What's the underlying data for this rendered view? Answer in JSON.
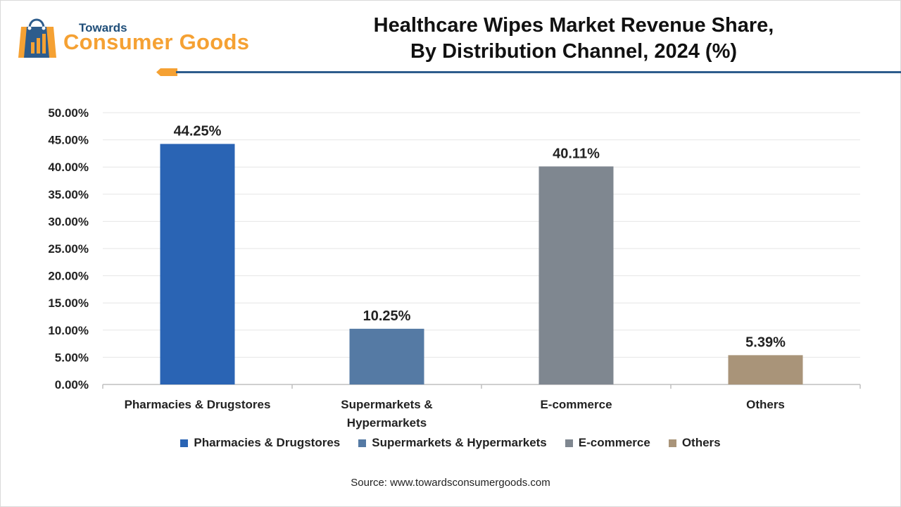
{
  "brand": {
    "top": "Towards",
    "main": "Consumer Goods"
  },
  "title_line1": "Healthcare Wipes Market Revenue Share,",
  "title_line2": "By Distribution Channel, 2024 (%)",
  "source": "Source: www.towardsconsumergoods.com",
  "colors": {
    "pharmacies": "#2a64b4",
    "supermarkets": "#557aa4",
    "ecommerce": "#7f8790",
    "others": "#a99479",
    "brand_orange": "#f5a133",
    "brand_blue": "#2d5c8c"
  },
  "chart_data": {
    "type": "bar",
    "title": "Healthcare Wipes Market Revenue Share, By Distribution Channel, 2024 (%)",
    "categories": [
      "Pharmacies & Drugstores",
      "Supermarkets & Hypermarkets",
      "E-commerce",
      "Others"
    ],
    "category_lines": [
      [
        "Pharmacies & Drugstores"
      ],
      [
        "Supermarkets &",
        "Hypermarkets"
      ],
      [
        "E-commerce"
      ],
      [
        "Others"
      ]
    ],
    "values": [
      44.25,
      10.25,
      40.11,
      5.39
    ],
    "value_labels": [
      "44.25%",
      "10.25%",
      "40.11%",
      "5.39%"
    ],
    "bar_colors": [
      "#2a64b4",
      "#557aa4",
      "#7f8790",
      "#a99479"
    ],
    "ylim": [
      0,
      50
    ],
    "yticks": [
      0,
      5,
      10,
      15,
      20,
      25,
      30,
      35,
      40,
      45,
      50
    ],
    "ytick_labels": [
      "0.00%",
      "5.00%",
      "10.00%",
      "15.00%",
      "20.00%",
      "25.00%",
      "30.00%",
      "35.00%",
      "40.00%",
      "45.00%",
      "50.00%"
    ],
    "xlabel": "",
    "ylabel": "",
    "grid": true,
    "legend": [
      "Pharmacies & Drugstores",
      "Supermarkets & Hypermarkets",
      "E-commerce",
      "Others"
    ],
    "legend_position": "bottom"
  }
}
